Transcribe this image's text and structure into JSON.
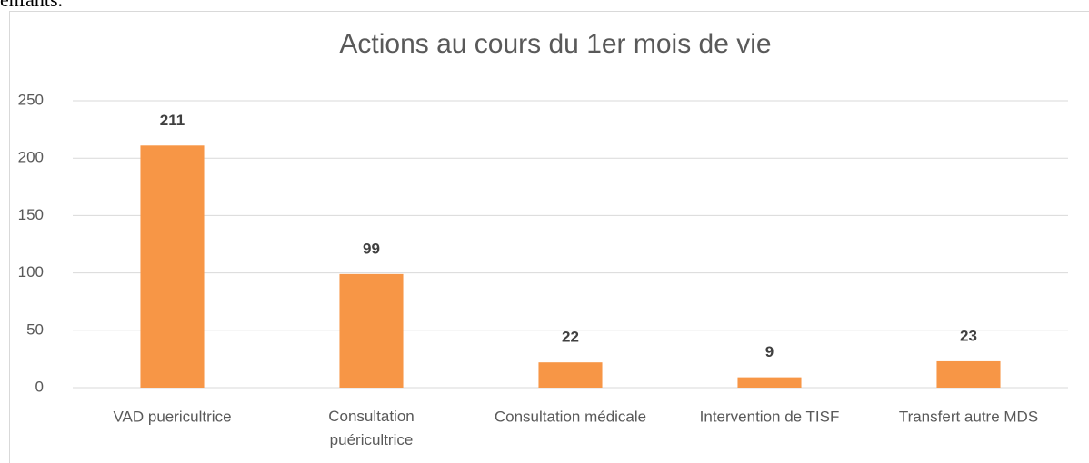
{
  "preceding_text": "enfants.",
  "chart_data": {
    "type": "bar",
    "title": "Actions au cours du 1er mois de vie",
    "categories": [
      "VAD puericultrice",
      "Consultation puéricultrice",
      "Consultation médicale",
      "Intervention de TISF",
      "Transfert autre MDS"
    ],
    "values": [
      211,
      99,
      22,
      9,
      23
    ],
    "color": "#f79646",
    "ylim": [
      0,
      250
    ],
    "yticks": [
      0,
      50,
      100,
      150,
      200,
      250
    ],
    "grid": true
  }
}
